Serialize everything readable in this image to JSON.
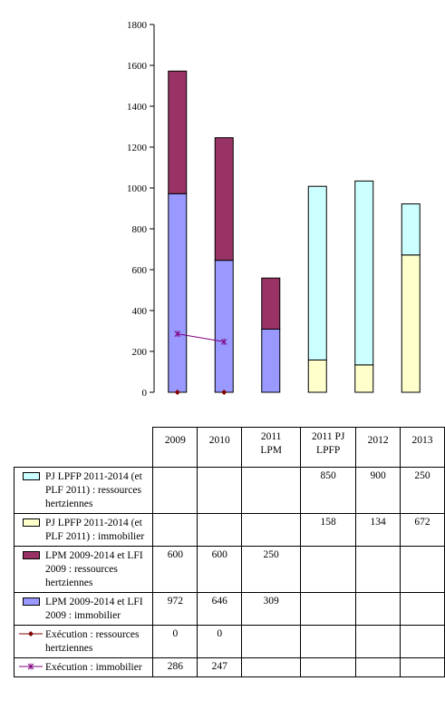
{
  "chart_data": {
    "type": "bar",
    "stacked": true,
    "categories": [
      "2009",
      "2010",
      "2011 LPM",
      "2011 PJ LPFP",
      "2012",
      "2013"
    ],
    "ylim": [
      0,
      1800
    ],
    "yticks": [
      "0",
      "200",
      "400",
      "600",
      "800",
      "1000",
      "1200",
      "1400",
      "1600",
      "1800"
    ],
    "grid": false,
    "legend": "data-table",
    "series": [
      {
        "name": "PJ LPFP 2011-2014 (et PLF 2011) : ressources hertziennes",
        "kind": "bar",
        "color": "#ccffff",
        "values": [
          null,
          null,
          null,
          850,
          900,
          250
        ],
        "labels": [
          "",
          "",
          "",
          "850",
          "900",
          "250"
        ]
      },
      {
        "name": "PJ LPFP 2011-2014 (et PLF 2011) : immobilier",
        "kind": "bar",
        "color": "#ffffcc",
        "values": [
          null,
          null,
          null,
          158,
          134,
          672
        ],
        "labels": [
          "",
          "",
          "",
          "158",
          "134",
          "672"
        ]
      },
      {
        "name": "LPM 2009-2014 et LFI 2009 : ressources hertziennes",
        "kind": "bar",
        "color": "#993366",
        "values": [
          600,
          600,
          250,
          null,
          null,
          null
        ],
        "labels": [
          "600",
          "600",
          "250",
          "",
          "",
          ""
        ]
      },
      {
        "name": "LPM 2009-2014 et LFI 2009 : immobilier",
        "kind": "bar",
        "color": "#9999ff",
        "values": [
          972,
          646,
          309,
          null,
          null,
          null
        ],
        "labels": [
          "972",
          "646",
          "309",
          "",
          "",
          ""
        ]
      },
      {
        "name": "Exécution : ressources hertziennes",
        "kind": "line",
        "color": "#800000",
        "marker": "diamond",
        "values": [
          0,
          0,
          null,
          null,
          null,
          null
        ],
        "labels": [
          "0",
          "0",
          "",
          "",
          "",
          ""
        ]
      },
      {
        "name": "Exécution : immobilier",
        "kind": "line",
        "color": "#800080",
        "marker": "star",
        "values": [
          286,
          247,
          null,
          null,
          null,
          null
        ],
        "labels": [
          "286",
          "247",
          "",
          "",
          "",
          ""
        ]
      }
    ]
  }
}
